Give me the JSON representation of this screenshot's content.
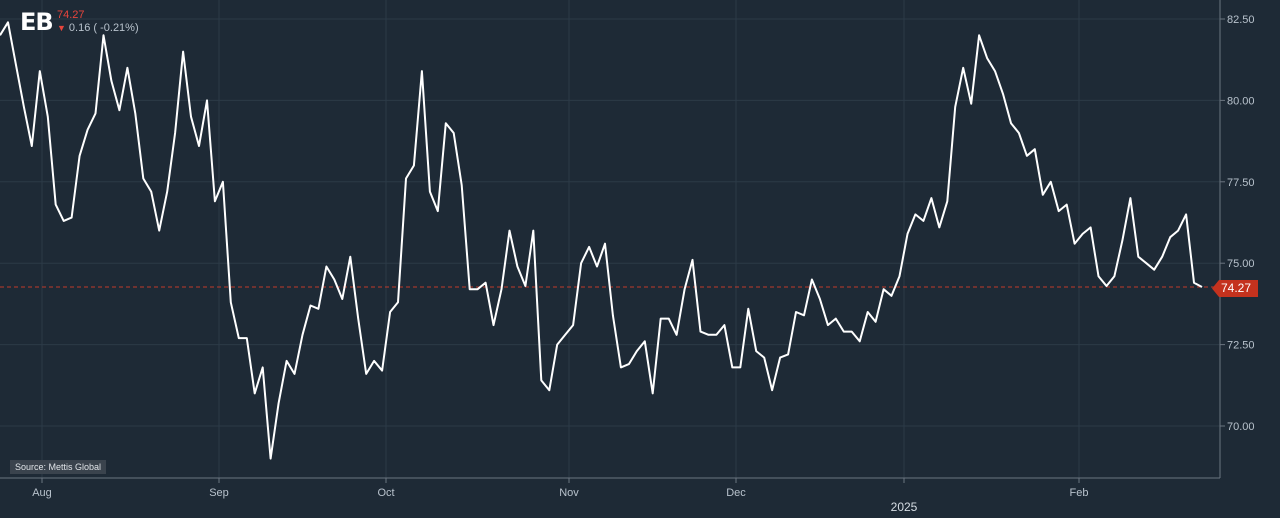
{
  "header": {
    "ticker": "EB",
    "last_price": "74.27",
    "change": "0.16 ( -0.21%)",
    "direction": "down"
  },
  "source_label": "Source: Mettis Global",
  "colors": {
    "background": "#1e2a36",
    "line": "#ffffff",
    "gridline": "#2c3a47",
    "reference_line": "#c0392b",
    "price_tag": "#c4321e",
    "negative": "#e8453c",
    "axis_text": "#b8c2cc"
  },
  "chart_data": {
    "type": "line",
    "title": "",
    "xlabel": "",
    "ylabel": "",
    "ylim": [
      68.5,
      83.0
    ],
    "y_ticks": [
      "82.50",
      "80.00",
      "77.50",
      "75.00",
      "72.50",
      "70.00"
    ],
    "x_ticks": [
      "Aug",
      "Sep",
      "Oct",
      "Nov",
      "Dec",
      "2025",
      "Feb"
    ],
    "year_label": "2025",
    "current_value": 74.27,
    "current_label": "74.27",
    "grid": true,
    "series": [
      {
        "values": [
          82.0,
          82.4,
          81.1,
          79.8,
          78.6,
          80.9,
          79.5,
          76.8,
          76.3,
          76.4,
          78.3,
          79.1,
          79.6,
          82.0,
          80.6,
          79.7,
          81.0,
          79.6,
          77.6,
          77.2,
          76.0,
          77.2,
          79.0,
          81.5,
          79.5,
          78.6,
          80.0,
          76.9,
          77.5,
          73.8,
          72.7,
          72.7,
          71.0,
          71.8,
          69.0,
          70.7,
          72.0,
          71.6,
          72.8,
          73.7,
          73.6,
          74.9,
          74.5,
          73.9,
          75.2,
          73.3,
          71.6,
          72.0,
          71.7,
          73.5,
          73.8,
          77.6,
          78.0,
          80.9,
          77.2,
          76.6,
          79.3,
          79.0,
          77.4,
          74.2,
          74.2,
          74.4,
          73.1,
          74.2,
          76.0,
          74.9,
          74.3,
          76.0,
          71.4,
          71.1,
          72.5,
          72.8,
          73.1,
          75.0,
          75.5,
          74.9,
          75.6,
          73.4,
          71.8,
          71.9,
          72.3,
          72.6,
          71.0,
          73.3,
          73.3,
          72.8,
          74.2,
          75.1,
          72.9,
          72.8,
          72.8,
          73.1,
          71.8,
          71.8,
          73.6,
          72.3,
          72.1,
          71.1,
          72.1,
          72.2,
          73.5,
          73.4,
          74.5,
          73.9,
          73.1,
          73.3,
          72.9,
          72.9,
          72.6,
          73.5,
          73.2,
          74.2,
          74.0,
          74.6,
          75.9,
          76.5,
          76.3,
          77.0,
          76.1,
          76.9,
          79.8,
          81.0,
          79.9,
          82.0,
          81.3,
          80.9,
          80.2,
          79.3,
          79.0,
          78.3,
          78.5,
          77.1,
          77.5,
          76.6,
          76.8,
          75.6,
          75.9,
          76.1,
          74.6,
          74.3,
          74.6,
          75.7,
          77.0,
          75.2,
          75.0,
          74.8,
          75.2,
          75.8,
          76.0,
          76.5,
          74.4,
          74.27
        ]
      }
    ]
  }
}
